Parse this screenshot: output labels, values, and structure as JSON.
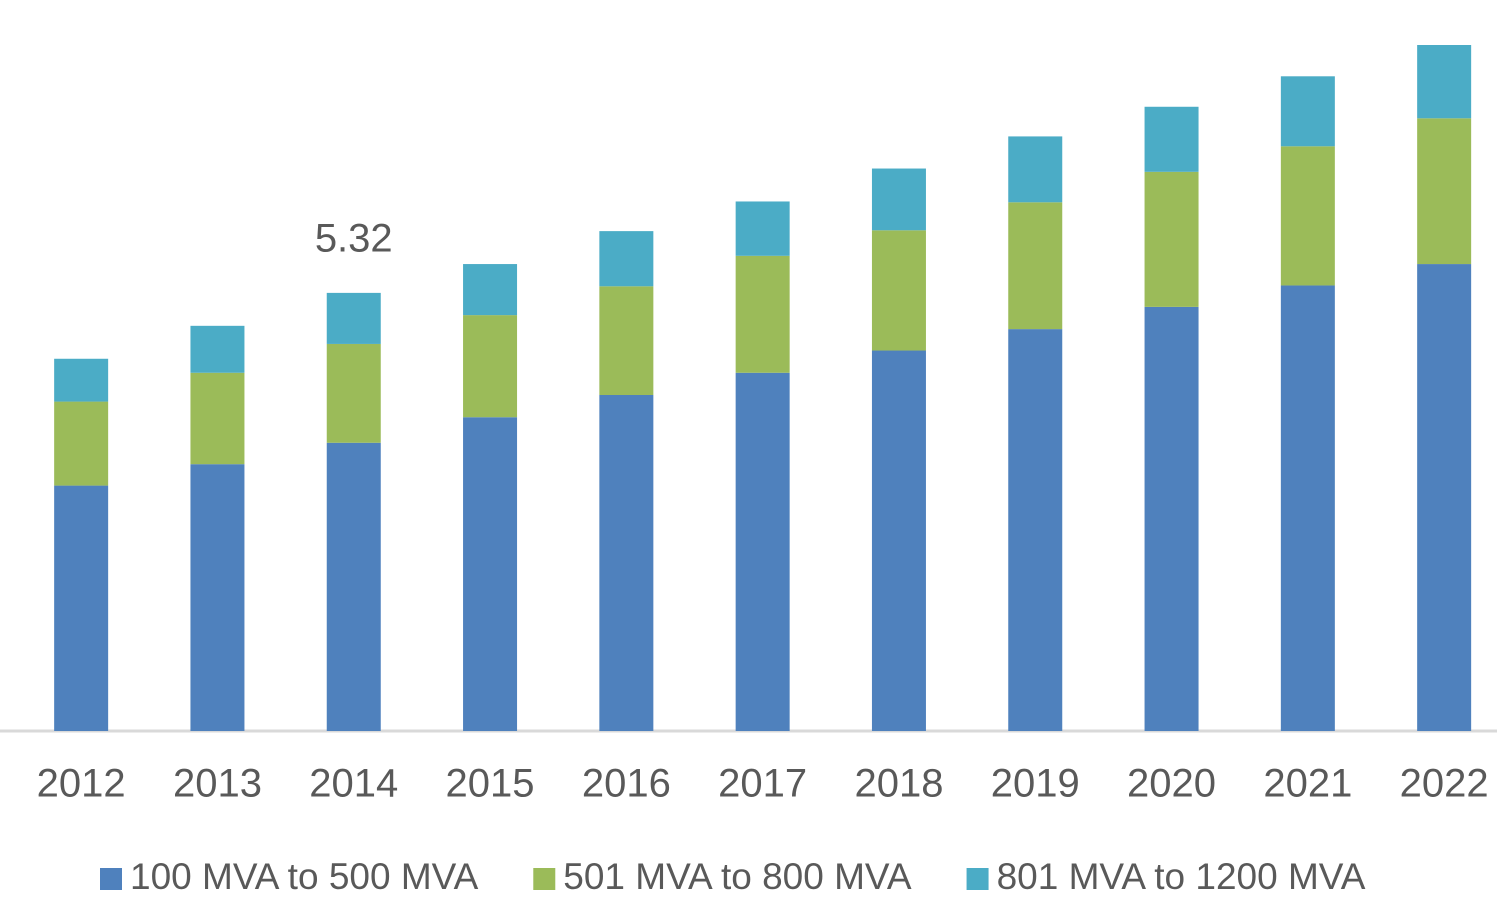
{
  "chart_data": {
    "type": "stacked_bar",
    "categories": [
      "2012",
      "2013",
      "2014",
      "2015",
      "2016",
      "2017",
      "2018",
      "2019",
      "2020",
      "2021",
      "2022"
    ],
    "series": [
      {
        "name": "100 MVA to 500 MVA",
        "color": "#4f81bd",
        "values": [
          2.98,
          3.24,
          3.5,
          3.81,
          4.08,
          4.35,
          4.62,
          4.88,
          5.15,
          5.41,
          5.67
        ]
      },
      {
        "name": "501 MVA to 800 MVA",
        "color": "#9bbb59",
        "values": [
          1.02,
          1.11,
          1.2,
          1.24,
          1.32,
          1.42,
          1.46,
          1.54,
          1.64,
          1.69,
          1.77
        ]
      },
      {
        "name": "801 MVA to 1200 MVA",
        "color": "#4bacc6",
        "values": [
          0.52,
          0.57,
          0.62,
          0.62,
          0.67,
          0.66,
          0.75,
          0.8,
          0.79,
          0.85,
          0.89
        ]
      }
    ],
    "annotations": [
      {
        "text": "5.32",
        "category": "2014",
        "value": 5.32
      }
    ],
    "ylim": [
      0,
      8.5
    ],
    "legend": "bottom"
  }
}
